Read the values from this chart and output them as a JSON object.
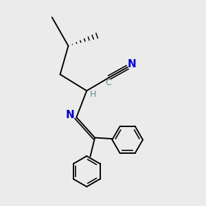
{
  "bg_color": "#ebebeb",
  "bond_color": "#000000",
  "n_color": "#0000cc",
  "c_label_color": "#5a9090",
  "h_color": "#5a9090",
  "line_width": 1.4,
  "figsize": [
    3.0,
    3.0
  ],
  "dpi": 100,
  "xlim": [
    0,
    10
  ],
  "ylim": [
    0,
    10
  ],
  "C6": [
    2.5,
    9.2
  ],
  "C5": [
    3.3,
    7.8
  ],
  "Me": [
    4.7,
    8.3
  ],
  "C4": [
    2.9,
    6.4
  ],
  "C2": [
    4.2,
    5.6
  ],
  "CN_C": [
    5.3,
    6.25
  ],
  "CN_N": [
    6.2,
    6.75
  ],
  "N_im": [
    3.7,
    4.3
  ],
  "C_im": [
    4.6,
    3.3
  ],
  "Ph1_c": [
    6.2,
    3.2
  ],
  "Ph2_c": [
    4.2,
    1.65
  ],
  "Ph1_r": 0.75,
  "Ph2_r": 0.75,
  "n_hash": 7
}
